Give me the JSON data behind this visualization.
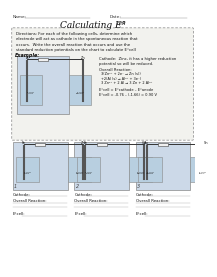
{
  "bg_color": "#ffffff",
  "text_color": "#333333",
  "dark_text": "#111111",
  "name_label": "Name:",
  "date_label": "Date:",
  "title_main": "Calculating E°",
  "title_sub": "cell",
  "directions": "Directions: For each of the following cells, determine which\nelectrode will act as cathode in the spontaneous reaction that\noccurs.  Write the overall reaction that occurs and use the\nstandard reduction potentials on the chart to calculate E°cell",
  "example_cathode_text": "Cathode:  Zinc, it has a higher reduction\npotential so will be reduced.",
  "example_overall_header": "Overall Reaction:",
  "example_overall_lines": [
    "3(Zn²⁺ + 2e⁻ → Zn (s))",
    "+2(Al (s) → Al³⁺ + 3e⁻)",
    "3 Zn²⁺ + 2 Al → 3 Zn + 2 Al³⁺"
  ],
  "example_ecell_formula": "E°cell = E°cathode – E°anode",
  "example_ecell_value": "E°cell = -0.76 – (-1.66) = 0.90 V",
  "example_elec": [
    "Al",
    "Zn"
  ],
  "example_sol": [
    "1.0 M\nAlCl₃",
    "1.0 M\nZnSO₄"
  ],
  "cells": [
    {
      "num": "1",
      "elec": [
        "Fe",
        "Zn"
      ],
      "sol": [
        "1.0 M\nFeCl₂",
        "1.0 M\nZnSO₄"
      ]
    },
    {
      "num": "2",
      "elec": [
        "Fe",
        "Cu"
      ],
      "sol": [
        "1.0 M\nFeCl₂",
        "1.0 M\nCuSO₄"
      ]
    },
    {
      "num": "3",
      "elec": [
        "Ag",
        "Sn"
      ],
      "sol": [
        "1.0 M\nAgNO₃",
        "1.0 M\nSnCl₂"
      ]
    }
  ],
  "cathode_label": "Cathode:",
  "overall_label": "Overall Reaction:",
  "ecell_label": "E°cell:",
  "cell_fill": "#ccd9e8",
  "cell_border": "#888888",
  "beaker_fill": "#b8cfe0",
  "electrode_color": "#555555",
  "wire_color": "#333333",
  "box_fill": "#f2f2ee",
  "box_border": "#999999"
}
